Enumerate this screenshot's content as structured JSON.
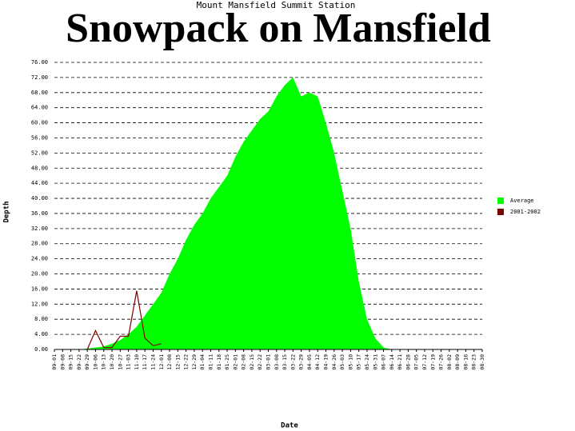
{
  "chart_data": {
    "type": "area",
    "title": "Snowpack on Mansfield",
    "subtitle": "Mount Mansfield Summit Station",
    "x_label": "Date",
    "y_label": "Depth",
    "categories": [
      "09-01",
      "09-08",
      "09-15",
      "09-22",
      "09-29",
      "10-06",
      "10-13",
      "10-20",
      "10-27",
      "11-03",
      "11-10",
      "11-17",
      "11-24",
      "12-01",
      "12-08",
      "12-15",
      "12-22",
      "12-29",
      "01-04",
      "01-11",
      "01-18",
      "01-25",
      "02-01",
      "02-08",
      "02-15",
      "02-22",
      "03-01",
      "03-08",
      "03-15",
      "03-22",
      "03-29",
      "04-05",
      "04-12",
      "04-19",
      "04-26",
      "05-03",
      "05-10",
      "05-17",
      "05-24",
      "05-31",
      "06-07",
      "06-14",
      "06-21",
      "06-28",
      "07-05",
      "07-12",
      "07-19",
      "07-26",
      "08-02",
      "08-09",
      "08-16",
      "08-23",
      "08-30"
    ],
    "series": [
      {
        "name": "Average",
        "color": "#00ff00",
        "type": "area",
        "values": [
          0,
          0,
          0,
          0,
          0.2,
          0.5,
          0.8,
          1.5,
          2.5,
          4,
          6,
          9,
          12,
          15,
          20,
          24,
          29,
          33,
          36,
          40,
          43,
          46,
          51,
          55,
          58,
          61,
          63,
          67,
          70,
          72,
          67,
          68,
          67,
          60,
          52,
          42,
          32,
          18,
          8,
          3,
          0.5,
          0,
          0,
          0,
          0,
          0,
          0,
          0,
          0,
          0,
          0,
          0,
          0
        ]
      },
      {
        "name": "2001-2002",
        "color": "#800000",
        "type": "line",
        "values": [
          null,
          null,
          null,
          null,
          0,
          5,
          0.5,
          0.5,
          3.5,
          3.5,
          15.5,
          3,
          1,
          1.5,
          null,
          null,
          null,
          null,
          null,
          null,
          null,
          null,
          null,
          null,
          null,
          null,
          null,
          null,
          null,
          null,
          null,
          null,
          null,
          null,
          null,
          null,
          null,
          null,
          null,
          null,
          null,
          null,
          null,
          null,
          null,
          null,
          null,
          null,
          null,
          null,
          null,
          null,
          null
        ]
      }
    ],
    "ylim": [
      0,
      76
    ],
    "yticks": [
      {
        "value": 0,
        "label": "0.00"
      },
      {
        "value": 4,
        "label": "4.00"
      },
      {
        "value": 8,
        "label": "8.00"
      },
      {
        "value": 12,
        "label": "12.00"
      },
      {
        "value": 16,
        "label": "16.00"
      },
      {
        "value": 20,
        "label": "20.00"
      },
      {
        "value": 24,
        "label": "24.00"
      },
      {
        "value": 28,
        "label": "28.00"
      },
      {
        "value": 32,
        "label": "32.00"
      },
      {
        "value": 36,
        "label": "36.00"
      },
      {
        "value": 40,
        "label": "40.00"
      },
      {
        "value": 44,
        "label": "44.00"
      },
      {
        "value": 48,
        "label": "48.00"
      },
      {
        "value": 52,
        "label": "52.00"
      },
      {
        "value": 56,
        "label": "56.00"
      },
      {
        "value": 60,
        "label": "60.00"
      },
      {
        "value": 64,
        "label": "64.00"
      },
      {
        "value": 68,
        "label": "68.00"
      },
      {
        "value": 72,
        "label": "72.00"
      },
      {
        "value": 76,
        "label": "76.00"
      }
    ],
    "grid": true,
    "legend": "right"
  }
}
